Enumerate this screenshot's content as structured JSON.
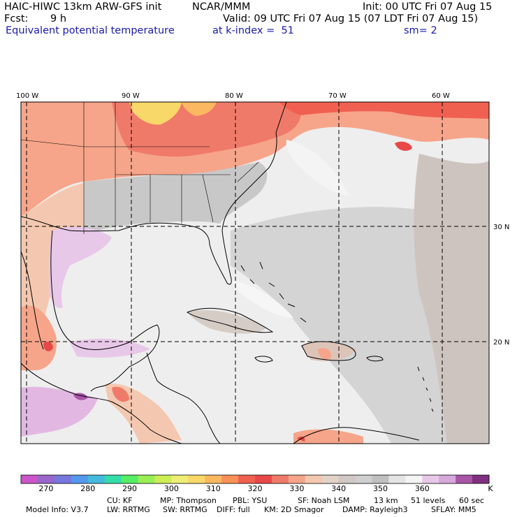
{
  "header": {
    "model": "HAIC-HIWC 13km ARW-GFS init",
    "org": "NCAR/MMM",
    "init": "Init: 00 UTC Fri 07 Aug 15",
    "fcst_label": "Fcst:",
    "fcst_value": "9 h",
    "valid": "Valid: 09 UTC Fri 07 Aug 15 (07 LDT Fri 07 Aug 15)",
    "field": "Equivalent potential temperature",
    "level": "at k-index =  51",
    "smoothing": "sm= 2"
  },
  "map": {
    "lon_labels": [
      "100 W",
      "90 W",
      "80 W",
      "70 W",
      "60 W"
    ],
    "lat_labels": [
      "30 N",
      "20 N"
    ]
  },
  "colorbar": {
    "colors": [
      "#cc55cc",
      "#9966cc",
      "#7777dd",
      "#5599ee",
      "#44bbdd",
      "#33ddaa",
      "#55ee66",
      "#99ee55",
      "#ccee55",
      "#eeee77",
      "#f8d868",
      "#fbb860",
      "#f99055",
      "#f06050",
      "#e84848",
      "#f07a6a",
      "#f6a58a",
      "#f4c8b0",
      "#e2d2c8",
      "#d0c8c4",
      "#cfcfcf",
      "#c0c0c0",
      "#e4e4e4",
      "#f4f4f4",
      "#e8c8e8",
      "#d6a8dc",
      "#a855a8",
      "#803080"
    ],
    "tick_labels": [
      "270",
      "280",
      "290",
      "300",
      "310",
      "320",
      "330",
      "340",
      "350",
      "360"
    ],
    "unit": "K"
  },
  "model_info": {
    "line1": [
      "Model Info: V3.7",
      "CU: KF",
      "MP: Thompson",
      "PBL: YSU",
      "SF: Noah LSM",
      "13 km",
      "51 levels",
      "60 sec"
    ],
    "line2": [
      "LW: RRTMG",
      "SW: RRTMG",
      "DIFF: full",
      "KM: 2D Smagor",
      "DAMP: Rayleigh3",
      "SFLAY: MM5"
    ]
  }
}
